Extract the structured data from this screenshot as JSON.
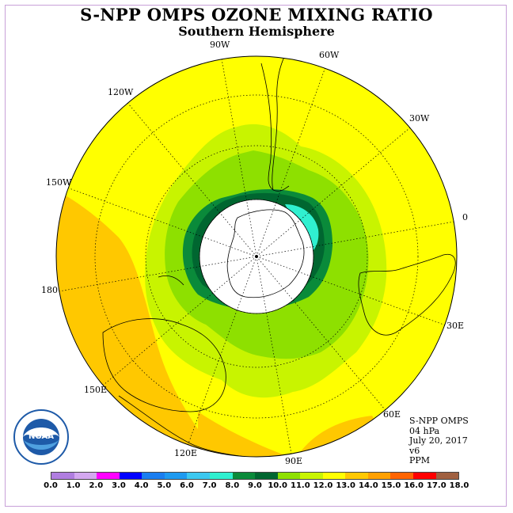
{
  "title": "S-NPP OMPS OZONE MIXING RATIO",
  "subtitle": "Southern Hemisphere",
  "longitude_labels": [
    "90W",
    "60W",
    "30W",
    "0",
    "30E",
    "60E",
    "90E",
    "120E",
    "150E",
    "180",
    "150W",
    "120W"
  ],
  "info": {
    "instrument": "S-NPP OMPS",
    "level": "04 hPa",
    "date": "July 20, 2017",
    "version": "v6",
    "unit": "PPM"
  },
  "logo": {
    "text": "NOAA",
    "icon": "noaa-logo"
  },
  "colorbar": {
    "ticks": [
      "0.0",
      "1.0",
      "2.0",
      "3.0",
      "4.0",
      "5.0",
      "6.0",
      "7.0",
      "8.0",
      "9.0",
      "10.0",
      "11.0",
      "12.0",
      "13.0",
      "14.0",
      "15.0",
      "16.0",
      "17.0",
      "18.0"
    ],
    "colors": [
      "#b07ee0",
      "#d4a8f0",
      "#ff00ff",
      "#0000ff",
      "#1a7ef0",
      "#1e9af0",
      "#3cc8f0",
      "#30f0d0",
      "#0a8a3a",
      "#006630",
      "#8ee000",
      "#c8f400",
      "#ffff00",
      "#ffc800",
      "#ffa000",
      "#ff6400",
      "#ff0000",
      "#a06040"
    ]
  },
  "map_colors": {
    "ocean_bg": "#ffff00",
    "orange": "#ffc800",
    "lightgreen": "#c8f400",
    "green": "#8ee000",
    "darkgreen": "#0a8a3a",
    "darkergreen": "#006630",
    "cyan": "#30f0d0",
    "polar_cap": "#ffffff"
  }
}
